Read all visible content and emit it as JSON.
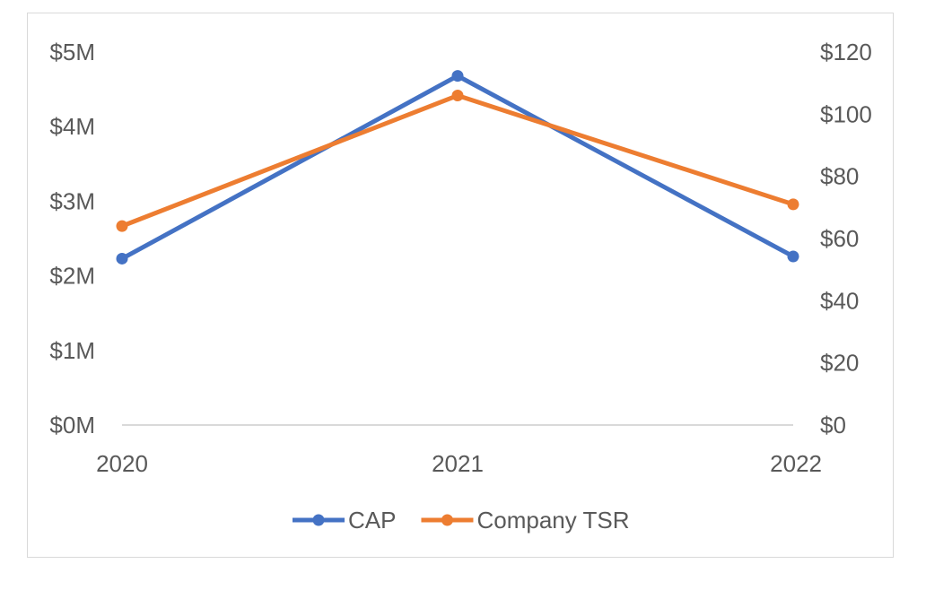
{
  "chart_data": {
    "type": "line",
    "categories": [
      "2020",
      "2021",
      "2022"
    ],
    "y_left": {
      "ticks": [
        "$0M",
        "$1M",
        "$2M",
        "$3M",
        "$4M",
        "$5M"
      ],
      "ylim": [
        0,
        5
      ],
      "unit": "$M"
    },
    "y_right": {
      "ticks": [
        "$0",
        "$20",
        "$40",
        "$60",
        "$80",
        "$100",
        "$120"
      ],
      "ylim": [
        0,
        120
      ],
      "unit": "$"
    },
    "series": [
      {
        "name": "CAP",
        "axis": "left",
        "values": [
          2.23,
          4.68,
          2.26
        ],
        "color": "#4472C4"
      },
      {
        "name": "Company TSR",
        "axis": "right",
        "values": [
          64,
          106,
          71
        ],
        "color": "#ED7D31"
      }
    ],
    "grid": false,
    "legend_position": "bottom"
  }
}
